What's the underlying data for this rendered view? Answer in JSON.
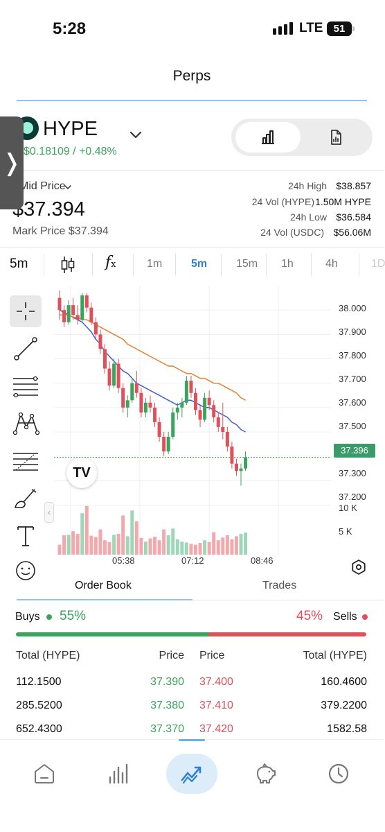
{
  "status_bar": {
    "time": "5:28",
    "network": "LTE",
    "battery": "51"
  },
  "header": {
    "title": "Perps"
  },
  "coin": {
    "name": "HYPE",
    "change": "$0.18109  /  +0.48%"
  },
  "price_panel": {
    "price_label": "Mid Price",
    "price": "$37.394",
    "mark_price": "Mark Price $37.394",
    "stats": [
      {
        "label": "24h High",
        "value": "$38.857"
      },
      {
        "label": "24 Vol (HYPE)",
        "value": "1.50M HYPE"
      },
      {
        "label": "24h Low",
        "value": "$36.584"
      },
      {
        "label": "24 Vol (USDC)",
        "value": "$56.06M"
      }
    ]
  },
  "chart_toolbar": {
    "interval": "5m",
    "timeframes": [
      "1m",
      "5m",
      "15m",
      "1h",
      "4h",
      "1D"
    ],
    "active_timeframe": "5m"
  },
  "chart_data": {
    "type": "candlestick",
    "symbol": "HYPE",
    "interval": "5m",
    "y_ticks": [
      38.0,
      37.9,
      37.8,
      37.7,
      37.6,
      37.5,
      37.3,
      37.2
    ],
    "y_tick_labels": [
      "38.000",
      "37.900",
      "37.800",
      "37.700",
      "37.600",
      "37.500",
      "37.300",
      "37.200"
    ],
    "ylim": [
      37.19,
      38.1
    ],
    "x_tick_labels": [
      "05:38",
      "07:12",
      "08:46"
    ],
    "last_price_label": "37.396",
    "last_price": 37.396,
    "volume_ticks": [
      "10 K",
      "5 K"
    ],
    "volume_max": 12000,
    "candles": [
      [
        38.05,
        38.08,
        37.96,
        38.0
      ],
      [
        38.0,
        38.02,
        37.93,
        37.95
      ],
      [
        37.95,
        38.04,
        37.94,
        38.02
      ],
      [
        38.02,
        38.05,
        37.96,
        37.98
      ],
      [
        37.98,
        38.02,
        37.94,
        37.96
      ],
      [
        37.96,
        38.07,
        37.95,
        38.06
      ],
      [
        38.06,
        38.07,
        37.99,
        38.01
      ],
      [
        38.01,
        38.03,
        37.94,
        37.95
      ],
      [
        37.95,
        37.97,
        37.88,
        37.9
      ],
      [
        37.9,
        37.92,
        37.82,
        37.84
      ],
      [
        37.84,
        37.86,
        37.74,
        37.76
      ],
      [
        37.76,
        37.79,
        37.67,
        37.69
      ],
      [
        37.69,
        37.8,
        37.68,
        37.78
      ],
      [
        37.78,
        37.8,
        37.66,
        37.68
      ],
      [
        37.68,
        37.7,
        37.58,
        37.6
      ],
      [
        37.6,
        37.65,
        37.56,
        37.63
      ],
      [
        37.63,
        37.72,
        37.62,
        37.7
      ],
      [
        37.7,
        37.75,
        37.64,
        37.66
      ],
      [
        37.66,
        37.68,
        37.56,
        37.58
      ],
      [
        37.58,
        37.64,
        37.56,
        37.62
      ],
      [
        37.62,
        37.65,
        37.58,
        37.6
      ],
      [
        37.6,
        37.62,
        37.52,
        37.54
      ],
      [
        37.54,
        37.56,
        37.46,
        37.48
      ],
      [
        37.48,
        37.5,
        37.4,
        37.42
      ],
      [
        37.42,
        37.5,
        37.41,
        37.48
      ],
      [
        37.48,
        37.6,
        37.47,
        37.58
      ],
      [
        37.58,
        37.62,
        37.55,
        37.6
      ],
      [
        37.6,
        37.64,
        37.56,
        37.62
      ],
      [
        37.62,
        37.73,
        37.61,
        37.71
      ],
      [
        37.71,
        37.73,
        37.64,
        37.66
      ],
      [
        37.66,
        37.68,
        37.57,
        37.59
      ],
      [
        37.59,
        37.61,
        37.52,
        37.55
      ],
      [
        37.55,
        37.66,
        37.54,
        37.64
      ],
      [
        37.64,
        37.67,
        37.59,
        37.61
      ],
      [
        37.61,
        37.63,
        37.54,
        37.56
      ],
      [
        37.56,
        37.58,
        37.5,
        37.52
      ],
      [
        37.52,
        37.62,
        37.47,
        37.5
      ],
      [
        37.5,
        37.52,
        37.42,
        37.44
      ],
      [
        37.44,
        37.46,
        37.35,
        37.37
      ],
      [
        37.37,
        37.39,
        37.32,
        37.34
      ],
      [
        37.34,
        37.37,
        37.28,
        37.35
      ],
      [
        37.35,
        37.42,
        37.34,
        37.396
      ]
    ],
    "moving_averages": [
      {
        "color": "#3f5fd9",
        "values": [
          38.0,
          37.99,
          37.98,
          37.97,
          37.96,
          37.95,
          37.93,
          37.91,
          37.88,
          37.86,
          37.83,
          37.81,
          37.79,
          37.77,
          37.75,
          37.74,
          37.72,
          37.7,
          37.69,
          37.68,
          37.67,
          37.66,
          37.65,
          37.64,
          37.63,
          37.62,
          37.61,
          37.62,
          37.63,
          37.63,
          37.62,
          37.61,
          37.6,
          37.6,
          37.59,
          37.58,
          37.57,
          37.56,
          37.54,
          37.53,
          37.51,
          37.5
        ]
      },
      {
        "color": "#e97f2e",
        "values": [
          37.98,
          37.98,
          37.98,
          37.97,
          37.97,
          37.96,
          37.96,
          37.95,
          37.94,
          37.93,
          37.92,
          37.91,
          37.9,
          37.89,
          37.88,
          37.86,
          37.85,
          37.84,
          37.83,
          37.82,
          37.81,
          37.8,
          37.79,
          37.78,
          37.77,
          37.77,
          37.76,
          37.75,
          37.74,
          37.74,
          37.73,
          37.72,
          37.72,
          37.71,
          37.7,
          37.7,
          37.69,
          37.68,
          37.67,
          37.66,
          37.64,
          37.63
        ]
      }
    ],
    "volumes": [
      2200,
      4300,
      4400,
      5200,
      4600,
      9200,
      10800,
      4200,
      3900,
      5600,
      3200,
      2800,
      4400,
      4600,
      8700,
      4100,
      9800,
      7400,
      3700,
      2900,
      3600,
      4000,
      3200,
      5600,
      4300,
      5800,
      3400,
      2900,
      2700,
      2400,
      2200,
      2600,
      3200,
      2800,
      5000,
      3200,
      3800,
      4300,
      3400,
      4100,
      4600,
      4900
    ]
  },
  "order_book": {
    "tabs": [
      "Order Book",
      "Trades"
    ],
    "active_tab": "Order Book",
    "buys_label": "Buys",
    "buys_pct": "55%",
    "buys_ratio": 0.55,
    "sells_label": "Sells",
    "sells_pct": "45%",
    "columns": [
      "Total (HYPE)",
      "Price",
      "Price",
      "Total (HYPE)"
    ],
    "rows": [
      {
        "bid_total": "112.1500",
        "bid_price": "37.390",
        "ask_price": "37.400",
        "ask_total": "160.4600"
      },
      {
        "bid_total": "285.5200",
        "bid_price": "37.380",
        "ask_price": "37.410",
        "ask_total": "379.2200"
      },
      {
        "bid_total": "652.4300",
        "bid_price": "37.370",
        "ask_price": "37.420",
        "ask_total": "1582.58"
      }
    ]
  },
  "bottom_nav": {
    "items": [
      "home-icon",
      "markets-icon",
      "trade-icon",
      "earn-icon",
      "history-icon"
    ],
    "active": "trade-icon"
  },
  "colors": {
    "green": "#3aa35c",
    "red": "#e0505a",
    "accent": "#2f7ed8"
  }
}
